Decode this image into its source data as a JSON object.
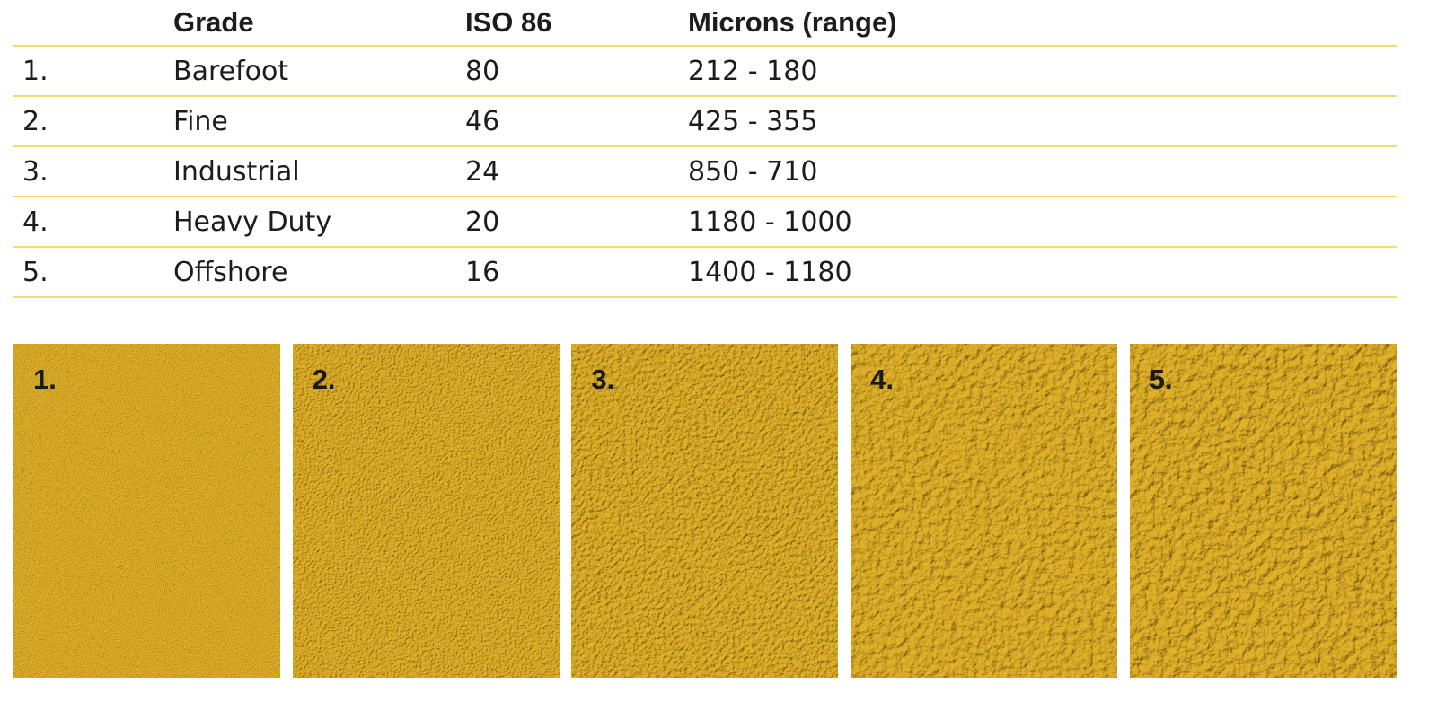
{
  "table": {
    "header": [
      "Grade",
      "ISO 86",
      "Microns (range)"
    ],
    "rows": [
      [
        "1.",
        "Barefoot",
        "80",
        "212 - 180"
      ],
      [
        "2.",
        "Fine",
        "46",
        "425 - 355"
      ],
      [
        "3.",
        "Industrial",
        "24",
        "850 - 710"
      ],
      [
        "4.",
        "Heavy Duty",
        "20",
        "1180 - 1000"
      ],
      [
        "5.",
        "Offshore",
        "16",
        "1400 - 1180"
      ]
    ]
  },
  "swatches": [
    {
      "label": "1."
    },
    {
      "label": "2."
    },
    {
      "label": "3."
    },
    {
      "label": "4."
    },
    {
      "label": "5."
    }
  ]
}
